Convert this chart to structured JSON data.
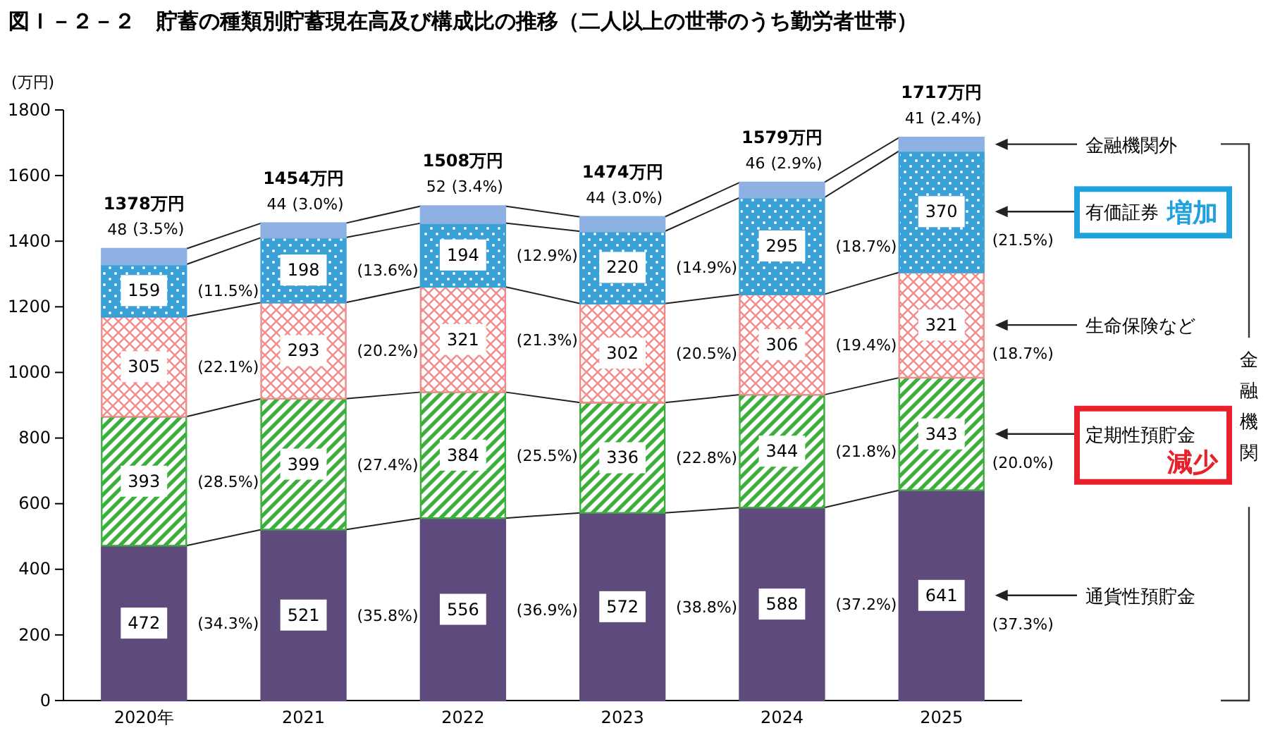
{
  "chart_data": {
    "type": "bar",
    "stacked": true,
    "title": "図Ｉ－２－２　貯蓄の種類別貯蓄現在高及び構成比の推移（二人以上の世帯のうち勤労者世帯）",
    "ylabel": "(万円)",
    "categories": [
      "2020年",
      "2021",
      "2022",
      "2023",
      "2024",
      "2025"
    ],
    "series": [
      {
        "name": "通貨性預貯金",
        "color": "#5e4a7d",
        "values": [
          472,
          521,
          556,
          572,
          588,
          641
        ]
      },
      {
        "name": "定期性預貯金",
        "color": "#3cae3c",
        "values": [
          393,
          399,
          384,
          336,
          344,
          343
        ]
      },
      {
        "name": "生命保険など",
        "color": "#f08c8c",
        "values": [
          305,
          293,
          321,
          302,
          306,
          321
        ]
      },
      {
        "name": "有価証券",
        "color": "#3aa0d8",
        "values": [
          159,
          198,
          194,
          220,
          295,
          370
        ]
      },
      {
        "name": "金融機関外",
        "color": "#8eb1e3",
        "values": [
          48,
          44,
          52,
          44,
          46,
          41
        ]
      }
    ],
    "ylim": [
      0,
      1800
    ],
    "yticks": [
      0,
      200,
      400,
      600,
      800,
      1000,
      1200,
      1400,
      1600,
      1800
    ],
    "grid": false,
    "legend": "right",
    "data_labels": true,
    "totals": [
      "1378万円",
      "1454万円",
      "1508万円",
      "1474万円",
      "1579万円",
      "1717万円"
    ],
    "annotations": [
      "増加",
      "減少",
      "金融機関",
      "(34.3%)",
      "(35.8%)",
      "(36.9%)",
      "(38.8%)",
      "(37.2%)",
      "(37.3%)",
      "(28.5%)",
      "(27.4%)",
      "(25.5%)",
      "(22.8%)",
      "(21.8%)",
      "(20.0%)",
      "(22.1%)",
      "(20.2%)",
      "(21.3%)",
      "(20.5%)",
      "(19.4%)",
      "(18.7%)",
      "(11.5%)",
      "(13.6%)",
      "(12.9%)",
      "(14.9%)",
      "(18.7%)",
      "(21.5%)",
      {
        "text": "(3.5%)",
        "x": "2020年",
        "y": 1378
      },
      {
        "text": "(3.0%)",
        "x": "2021",
        "y": 1454
      },
      {
        "text": "(3.4%)",
        "x": "2022",
        "y": 1508
      },
      {
        "text": "(3.0%)",
        "x": "2023",
        "y": 1474
      },
      {
        "text": "(2.9%)",
        "x": "2024",
        "y": 1579
      },
      {
        "text": "(2.4%)",
        "x": "2025",
        "y": 1717
      }
    ]
  }
}
